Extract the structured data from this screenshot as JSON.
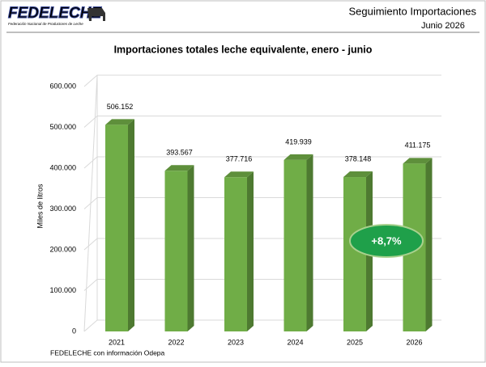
{
  "header": {
    "logo": "FEDELECHE",
    "logo_subtitle": "Federación Nacional de Productores de Leche",
    "title": "Seguimiento Importaciones",
    "date": "Junio 2026"
  },
  "chart_data": {
    "type": "bar",
    "title": "Importaciones totales leche equivalente, enero - junio",
    "y_label": "Miles de litros",
    "categories": [
      "2021",
      "2022",
      "2023",
      "2024",
      "2025",
      "2026"
    ],
    "values": [
      506152,
      393567,
      377716,
      419939,
      378148,
      411175
    ],
    "value_labels": [
      "506.152",
      "393.567",
      "377.716",
      "419.939",
      "378.148",
      "411.175"
    ],
    "color": "#70ad47",
    "ylim": [
      0,
      600000
    ],
    "yticks": [
      0,
      {
        "value": 100000,
        "label": "100.000"
      },
      {
        "value": 200000,
        "label": "200.000"
      },
      {
        "value": 300000,
        "label": "300.000"
      },
      {
        "value": 400000,
        "label": "400.000"
      },
      {
        "value": 500000,
        "label": "500.000"
      },
      {
        "value": 600000,
        "label": "600.000"
      }
    ],
    "grid": true,
    "annotation": "+8,7%",
    "source": "FEDELECHE con información Odepa"
  }
}
